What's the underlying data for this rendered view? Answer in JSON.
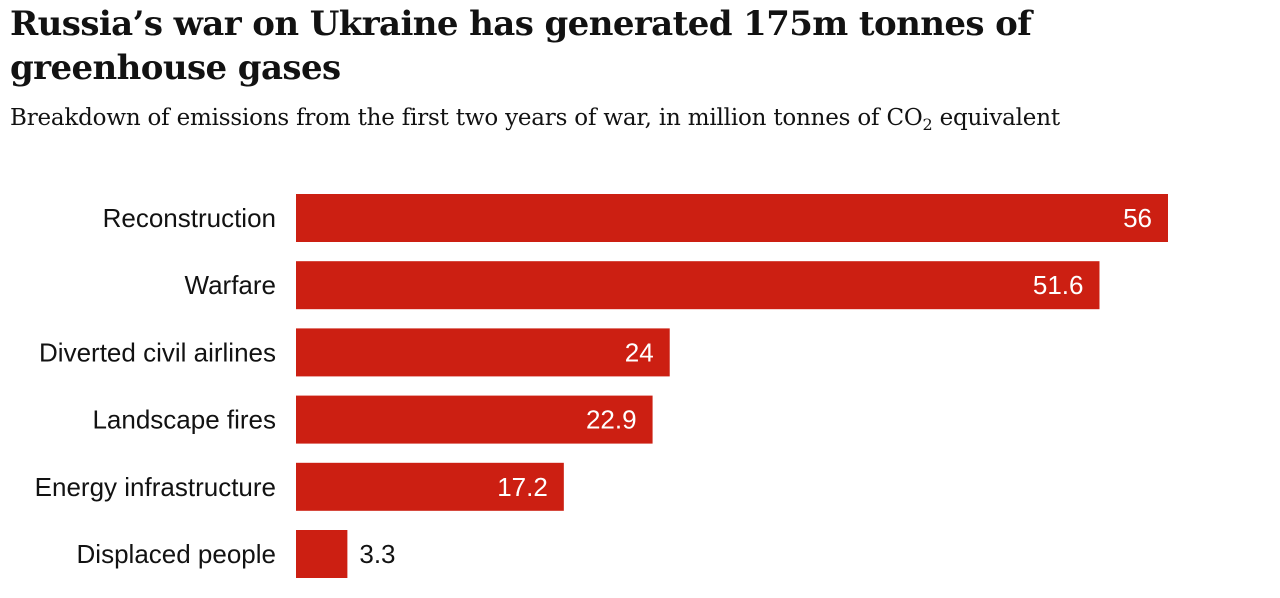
{
  "header": {
    "title": "Russia’s war on Ukraine has generated 175m tonnes of greenhouse gases",
    "subtitle_main": "Breakdown of emissions from the first two years of war, in million tonnes of CO",
    "subtitle_sub": "2",
    "subtitle_end": " equivalent"
  },
  "colors": {
    "bar": "#cc1f12",
    "text": "#121212",
    "inside_label": "#ffffff"
  },
  "chart_data": {
    "type": "bar",
    "orientation": "horizontal",
    "title": "Russia’s war on Ukraine has generated 175m tonnes of greenhouse gases",
    "subtitle": "Breakdown of emissions from the first two years of war, in million tonnes of CO2 equivalent",
    "xlabel": "",
    "ylabel": "",
    "xlim": [
      0,
      56
    ],
    "grid": false,
    "categories": [
      "Reconstruction",
      "Warfare",
      "Diverted civil airlines",
      "Landscape fires",
      "Energy infrastructure",
      "Displaced people"
    ],
    "values": [
      56,
      51.6,
      24,
      22.9,
      17.2,
      3.3
    ],
    "value_labels": [
      "56",
      "51.6",
      "24",
      "22.9",
      "17.2",
      "3.3"
    ]
  }
}
